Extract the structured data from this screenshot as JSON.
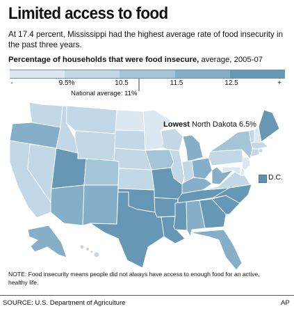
{
  "title": "Limited access to food",
  "subtitle": "At 17.4 percent, Mississippi had the highest average rate of food insecurity in the past three years.",
  "legend": {
    "heading_bold": "Percentage of households that were food insecure,",
    "heading_rest": " average, 2005-07",
    "ticks": [
      "-",
      "9.5%",
      "10.5",
      "11.5",
      "12.5",
      "+"
    ],
    "colors": [
      "#dce8f1",
      "#c2d8e7",
      "#a4c4d8",
      "#85aec8",
      "#6697b5"
    ]
  },
  "national_average_label": "National average: 11%",
  "lowest_label_bold": "Lowest",
  "lowest_label_rest": " North Dakota 6.5%",
  "dc_label": "D.C.",
  "dc_color": "#5f91ad",
  "note": "NOTE: Food insecurity means people did not always have access to enough food for an active, healthy life.",
  "source": "SOURCE: U.S. Department of Agriculture",
  "credit": "AP",
  "map_states": [
    {
      "name": "WA",
      "class": 1
    },
    {
      "name": "OR",
      "class": 3
    },
    {
      "name": "CA",
      "class": 1
    },
    {
      "name": "NV",
      "class": 1
    },
    {
      "name": "ID",
      "class": 1
    },
    {
      "name": "MT",
      "class": 1
    },
    {
      "name": "WY",
      "class": 1
    },
    {
      "name": "UT",
      "class": 4
    },
    {
      "name": "AZ",
      "class": 3
    },
    {
      "name": "CO",
      "class": 2
    },
    {
      "name": "NM",
      "class": 3
    },
    {
      "name": "ND",
      "class": 0
    },
    {
      "name": "SD",
      "class": 1
    },
    {
      "name": "NE",
      "class": 1
    },
    {
      "name": "KS",
      "class": 1
    },
    {
      "name": "OK",
      "class": 4
    },
    {
      "name": "TX",
      "class": 4
    },
    {
      "name": "MN",
      "class": 0
    },
    {
      "name": "IA",
      "class": 2
    },
    {
      "name": "MO",
      "class": 4
    },
    {
      "name": "AR",
      "class": 4
    },
    {
      "name": "LA",
      "class": 4
    },
    {
      "name": "WI",
      "class": 1
    },
    {
      "name": "IL",
      "class": 1
    },
    {
      "name": "MI",
      "class": 3
    },
    {
      "name": "IN",
      "class": 1
    },
    {
      "name": "OH",
      "class": 3
    },
    {
      "name": "KY",
      "class": 3
    },
    {
      "name": "TN",
      "class": 4
    },
    {
      "name": "MS",
      "class": 4
    },
    {
      "name": "AL",
      "class": 3
    },
    {
      "name": "GA",
      "class": 4
    },
    {
      "name": "FL",
      "class": 3
    },
    {
      "name": "SC",
      "class": 4
    },
    {
      "name": "NC",
      "class": 4
    },
    {
      "name": "VA",
      "class": 1
    },
    {
      "name": "WV",
      "class": 3
    },
    {
      "name": "PA",
      "class": 1
    },
    {
      "name": "NY",
      "class": 2
    },
    {
      "name": "VT",
      "class": 1
    },
    {
      "name": "NH",
      "class": 0
    },
    {
      "name": "ME",
      "class": 4
    },
    {
      "name": "MA",
      "class": 1
    },
    {
      "name": "CT",
      "class": 1
    },
    {
      "name": "NJ",
      "class": 0
    },
    {
      "name": "DE",
      "class": 0
    },
    {
      "name": "MD",
      "class": 0
    },
    {
      "name": "RI",
      "class": 1
    },
    {
      "name": "AK",
      "class": 3
    },
    {
      "name": "HI",
      "class": 1
    }
  ]
}
